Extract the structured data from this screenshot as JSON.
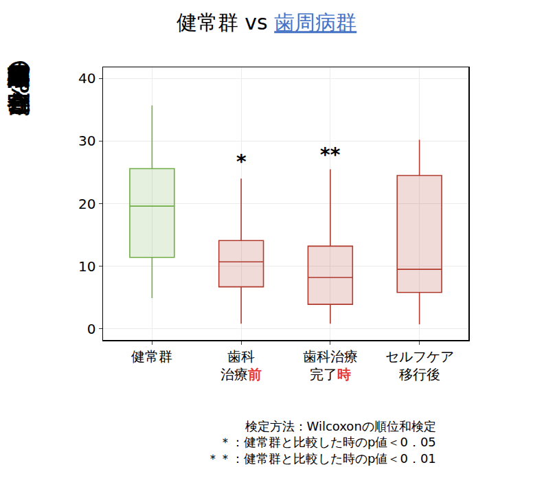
{
  "chart_data": {
    "type": "box",
    "title": "健常群 vs 歯周病群",
    "title_emphasis": "歯周病群",
    "title_emphasis_color": "#4472c4",
    "y_label": "硝酸還元細菌の存在割合(%)",
    "categories": [
      "健常群",
      "歯科\n治療前",
      "歯科治療\n完了時",
      "セルフケア\n移行後"
    ],
    "category_emphasis": [
      null,
      "前",
      "時",
      null
    ],
    "emphasis_color": "#e53935",
    "lower": [
      4.9,
      0.8,
      0.8,
      0.7
    ],
    "q1": [
      11.4,
      6.7,
      3.9,
      5.8
    ],
    "median": [
      19.6,
      10.7,
      8.2,
      9.5
    ],
    "q3": [
      25.6,
      14.1,
      13.2,
      24.5
    ],
    "upper": [
      35.7,
      24.0,
      25.5,
      30.2
    ],
    "colors": [
      "#70ad47",
      "#b03a2e",
      "#b03a2e",
      "#b03a2e"
    ],
    "ylim": [
      -1.8,
      41.8
    ],
    "yticks": [
      0,
      10,
      20,
      30,
      40
    ],
    "grid": true,
    "annotations": [
      {
        "category": "歯科\n治療前",
        "y": 26.7,
        "text": "*"
      },
      {
        "category": "歯科治療\n完了時",
        "y": 27.8,
        "text": "**"
      }
    ],
    "notes": [
      "検定方法：Wilcoxonの順位和検定",
      "＊：健常群と比較した時のp値＜0．05",
      "＊＊：健常群と比較した時のp値＜0．01"
    ]
  }
}
